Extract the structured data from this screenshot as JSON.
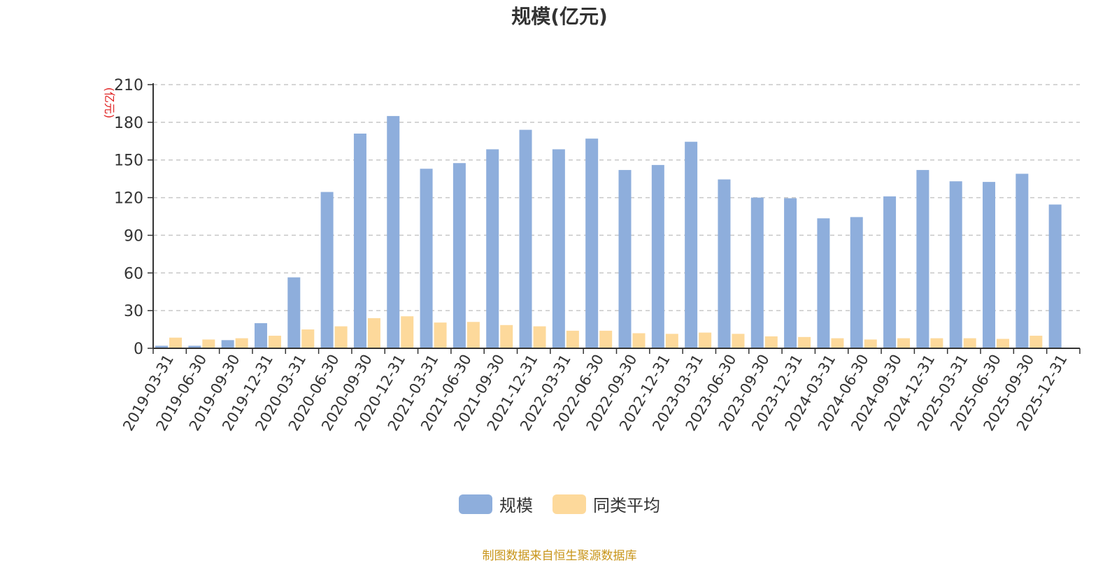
{
  "chart_data": {
    "type": "bar",
    "title": "规模(亿元)",
    "ylabel": "(亿元)",
    "ylim": [
      0,
      210
    ],
    "yticks": [
      0,
      30,
      60,
      90,
      120,
      150,
      180,
      210
    ],
    "grid": true,
    "legend_position": "bottom",
    "categories": [
      "2019-03-31",
      "2019-06-30",
      "2019-09-30",
      "2019-12-31",
      "2020-03-31",
      "2020-06-30",
      "2020-09-30",
      "2020-12-31",
      "2021-03-31",
      "2021-06-30",
      "2021-09-30",
      "2021-12-31",
      "2022-03-31",
      "2022-06-30",
      "2022-09-30",
      "2022-12-31",
      "2023-03-31",
      "2023-06-30",
      "2023-09-30",
      "2023-12-31",
      "2024-03-31",
      "2024-06-30",
      "2024-09-30",
      "2024-12-31",
      "2025-03-31",
      "2025-06-30",
      "2025-09-30",
      "2025-12-31"
    ],
    "series": [
      {
        "name": "规模",
        "color": "#8eaedc",
        "values": [
          2,
          2,
          6.5,
          20,
          56.5,
          124.5,
          171,
          185,
          143,
          147.5,
          158.5,
          174,
          158.5,
          167,
          142,
          146,
          164.5,
          134.5,
          120,
          119.5,
          103.5,
          104.5,
          121,
          142,
          133,
          132.5,
          139,
          114.5
        ]
      },
      {
        "name": "同类平均",
        "color": "#fdd99b",
        "values": [
          8.5,
          7,
          8,
          10,
          15,
          17.5,
          24,
          25.5,
          20.5,
          21,
          18.5,
          17.5,
          14,
          14,
          12,
          11.5,
          12.5,
          11.5,
          9.5,
          9,
          8,
          7,
          8,
          8,
          8,
          7.5,
          10,
          0
        ]
      }
    ]
  },
  "source_note": "制图数据来自恒生聚源数据库"
}
